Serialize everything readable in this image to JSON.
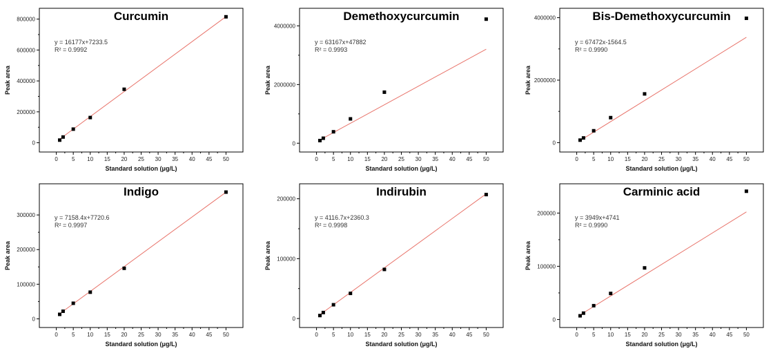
{
  "chart_data": [
    {
      "type": "scatter",
      "title": "Curcumin",
      "xlabel": "Standard solution (μg/L)",
      "ylabel": "Peak area",
      "xlim": [
        -5,
        55
      ],
      "ylim": [
        -60000,
        870000
      ],
      "xticks": [
        0,
        5,
        10,
        15,
        20,
        25,
        30,
        35,
        40,
        45,
        50
      ],
      "yticks": [
        0,
        200000,
        400000,
        600000,
        800000
      ],
      "x": [
        1,
        2,
        5,
        10,
        20,
        50
      ],
      "y": [
        17000,
        37000,
        88000,
        163000,
        346000,
        815000
      ],
      "fit": {
        "slope": 16177,
        "intercept": 7233.5,
        "color": "#e8736a"
      },
      "annotations": [
        "y = 16177x+7233.5",
        "R² = 0.9992"
      ],
      "grid": false
    },
    {
      "type": "scatter",
      "title": "Demethoxycurcumin",
      "xlabel": "Standard solution (μg/L)",
      "ylabel": "Peak area",
      "xlim": [
        -5,
        55
      ],
      "ylim": [
        -300000,
        4600000
      ],
      "xticks": [
        0,
        5,
        10,
        15,
        20,
        25,
        30,
        35,
        40,
        45,
        50
      ],
      "yticks": [
        0,
        2000000,
        4000000
      ],
      "x": [
        1,
        2,
        5,
        10,
        20,
        50
      ],
      "y": [
        90000,
        170000,
        390000,
        830000,
        1740000,
        4230000
      ],
      "fit": {
        "slope": 63167,
        "intercept": 47882,
        "color": "#e8736a"
      },
      "annotations": [
        "y = 63167x+47882",
        "R² = 0.9993"
      ],
      "grid": false
    },
    {
      "type": "scatter",
      "title": "Bis-Demethoxycurcumin",
      "xlabel": "Standard solution (μg/L)",
      "ylabel": "Peak area",
      "xlim": [
        -5,
        55
      ],
      "ylim": [
        -300000,
        4300000
      ],
      "xticks": [
        0,
        5,
        10,
        15,
        20,
        25,
        30,
        35,
        40,
        45,
        50
      ],
      "yticks": [
        0,
        2000000,
        4000000
      ],
      "x": [
        1,
        2,
        5,
        10,
        20,
        50
      ],
      "y": [
        80000,
        150000,
        380000,
        800000,
        1560000,
        3980000
      ],
      "fit": {
        "slope": 67472,
        "intercept": -1564.5,
        "color": "#e8736a"
      },
      "annotations": [
        "y = 67472x-1564.5",
        "R² = 0.9990"
      ],
      "grid": false
    },
    {
      "type": "scatter",
      "title": "Indigo",
      "xlabel": "Standard solution (μg/L)",
      "ylabel": "Peak area",
      "xlim": [
        -5,
        55
      ],
      "ylim": [
        -25000,
        390000
      ],
      "xticks": [
        0,
        5,
        10,
        15,
        20,
        25,
        30,
        35,
        40,
        45,
        50
      ],
      "yticks": [
        0,
        100000,
        200000,
        300000
      ],
      "x": [
        1,
        2,
        5,
        10,
        20,
        50
      ],
      "y": [
        13000,
        22000,
        45000,
        77000,
        146000,
        366000
      ],
      "fit": {
        "slope": 7158.4,
        "intercept": 7720.6,
        "color": "#e8736a"
      },
      "annotations": [
        "y = 7158.4x+7720.6",
        "R² = 0.9997"
      ],
      "grid": false
    },
    {
      "type": "scatter",
      "title": "Indirubin",
      "xlabel": "Standard solution (μg/L)",
      "ylabel": "Peak area",
      "xlim": [
        -5,
        55
      ],
      "ylim": [
        -15000,
        225000
      ],
      "xticks": [
        0,
        5,
        10,
        15,
        20,
        25,
        30,
        35,
        40,
        45,
        50
      ],
      "yticks": [
        0,
        100000,
        200000
      ],
      "x": [
        1,
        2,
        5,
        10,
        20,
        50
      ],
      "y": [
        5000,
        10000,
        23000,
        42000,
        82000,
        207000
      ],
      "fit": {
        "slope": 4116.7,
        "intercept": 2360.3,
        "color": "#e8736a"
      },
      "annotations": [
        "y = 4116.7x+2360.3",
        "R² = 0.9998"
      ],
      "grid": false
    },
    {
      "type": "scatter",
      "title": "Carminic acid",
      "xlabel": "Standard solution (μg/L)",
      "ylabel": "Peak area",
      "xlim": [
        -5,
        55
      ],
      "ylim": [
        -15000,
        255000
      ],
      "xticks": [
        0,
        5,
        10,
        15,
        20,
        25,
        30,
        35,
        40,
        45,
        50
      ],
      "yticks": [
        0,
        100000,
        200000
      ],
      "x": [
        1,
        2,
        5,
        10,
        20,
        50
      ],
      "y": [
        7000,
        12000,
        26000,
        49000,
        97000,
        241000
      ],
      "fit": {
        "slope": 3949,
        "intercept": 4741,
        "color": "#e8736a"
      },
      "annotations": [
        "y = 3949x+4741",
        "R² = 0.9990"
      ],
      "grid": false
    }
  ]
}
